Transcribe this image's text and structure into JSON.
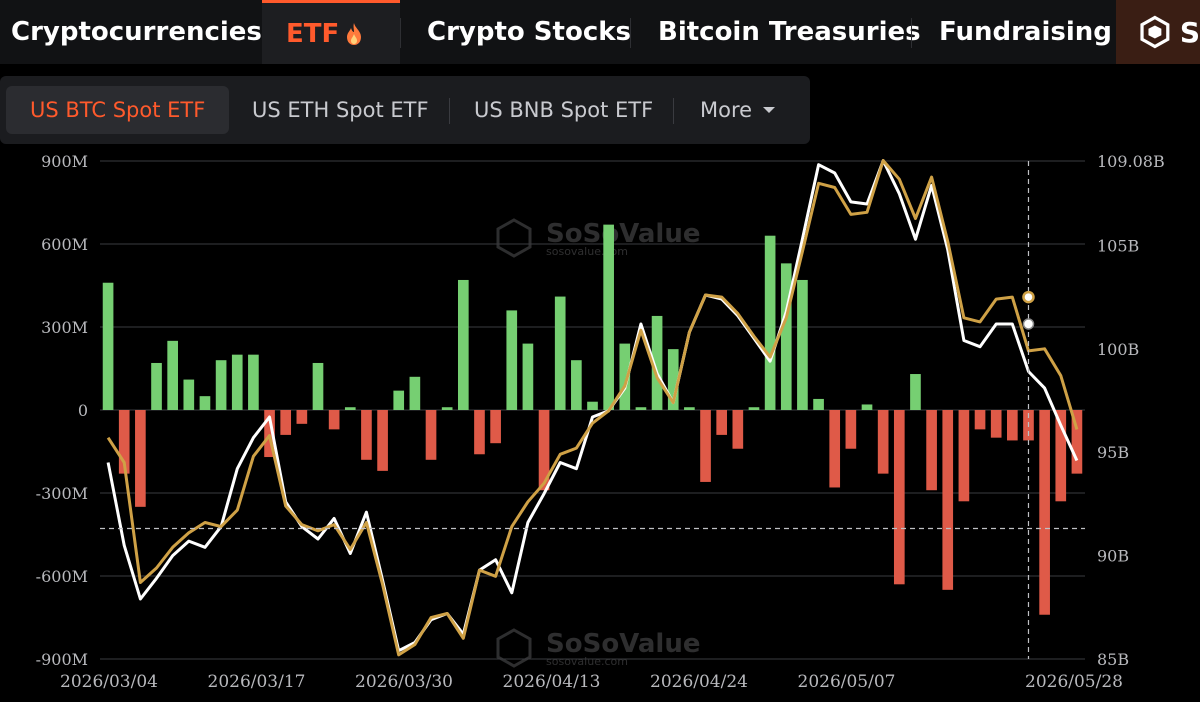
{
  "top_nav": {
    "tabs": [
      {
        "label": "Cryptocurrencies"
      },
      {
        "label": "ETF",
        "icon": "flame-icon"
      },
      {
        "label": "Crypto Stocks"
      },
      {
        "label": "Bitcoin Treasuries"
      },
      {
        "label": "Fundraising"
      }
    ],
    "active_tab": "ETF",
    "brand_icon": "sosovalue-logo-icon",
    "brand_text": "S"
  },
  "sub_nav": {
    "items": [
      {
        "label": "US BTC Spot ETF"
      },
      {
        "label": "US ETH Spot ETF"
      },
      {
        "label": "US BNB Spot ETF"
      },
      {
        "label": "More",
        "icon": "caret-down-icon"
      }
    ],
    "active_item": "US BTC Spot ETF"
  },
  "watermark": {
    "title": "SoSoValue",
    "subtitle": "sosovalue.com"
  },
  "colors": {
    "inflow": "#76cf72",
    "outflow": "#df5a48",
    "total_net_assets_line": "#cfa146",
    "btc_price_line": "#ffffff",
    "active_accent": "#ff5a2c"
  },
  "chart_data": {
    "type": "bar",
    "grid": true,
    "crosshair_date_index": 57,
    "left_axis": {
      "ylim": [
        -900000000,
        900000000
      ],
      "tick_labels": [
        "900M",
        "600M",
        "300M",
        "0",
        "-300M",
        "-600M",
        "-900M"
      ]
    },
    "right_axis": {
      "ylim": [
        85,
        109.08
      ],
      "tick_labels": [
        "109.08B",
        "105B",
        "100B",
        "95B",
        "90B",
        "85B"
      ]
    },
    "x_tick_labels": [
      "2026/03/04",
      "2026/03/17",
      "2026/03/30",
      "2026/04/13",
      "2026/04/24",
      "2026/05/07",
      "2026/05/28"
    ],
    "series": [
      {
        "type": "bar",
        "values": [
          460,
          -230,
          -350,
          170,
          250,
          110,
          50,
          180,
          200,
          200,
          -170,
          -90,
          -50,
          170,
          -70,
          10,
          -180,
          -220,
          70,
          120,
          -180,
          10,
          470,
          -160,
          -120,
          360,
          240,
          -290,
          410,
          180,
          30,
          670,
          240,
          10,
          340,
          220,
          10,
          -260,
          -90,
          -140,
          10,
          630,
          530,
          470,
          40,
          -280,
          -140,
          20,
          -230,
          -630,
          130,
          -290,
          -650,
          -330,
          -70,
          -100,
          -110,
          -110,
          -740,
          -330,
          -230
        ]
      },
      {
        "type": "line",
        "values": [
          95.7,
          94.5,
          88.7,
          89.4,
          90.4,
          91.1,
          91.6,
          91.4,
          92.2,
          94.8,
          95.8,
          92.4,
          91.5,
          91.2,
          91.5,
          90.3,
          91.6,
          88.6,
          85.2,
          85.7,
          87.0,
          87.2,
          86.0,
          89.3,
          89.0,
          91.4,
          92.6,
          93.5,
          94.9,
          95.2,
          96.4,
          97.0,
          98.2,
          100.9,
          98.6,
          97.4,
          100.8,
          102.6,
          102.5,
          101.7,
          100.6,
          99.6,
          101.5,
          104.7,
          108.0,
          107.8,
          106.5,
          106.6,
          109.1,
          108.2,
          106.3,
          108.3,
          105.2,
          101.5,
          101.3,
          102.4,
          102.5,
          99.9,
          100.0,
          98.7,
          96.1
        ]
      },
      {
        "type": "line",
        "values": [
          94.5,
          90.5,
          87.9,
          88.9,
          90.0,
          90.7,
          90.4,
          91.4,
          94.2,
          95.7,
          96.7,
          92.6,
          91.4,
          90.8,
          91.8,
          90.1,
          92.1,
          88.8,
          85.4,
          85.8,
          86.9,
          87.2,
          86.2,
          89.3,
          89.8,
          88.2,
          91.6,
          93.0,
          94.5,
          94.2,
          96.7,
          97.0,
          98.1,
          101.2,
          98.8,
          97.4,
          100.8,
          102.6,
          102.4,
          101.6,
          100.5,
          99.4,
          101.8,
          105.3,
          108.9,
          108.5,
          107.1,
          107.0,
          109.1,
          107.5,
          105.3,
          107.9,
          104.8,
          100.4,
          100.1,
          101.2,
          101.2,
          98.9,
          98.1,
          96.3,
          94.6
        ]
      }
    ]
  }
}
